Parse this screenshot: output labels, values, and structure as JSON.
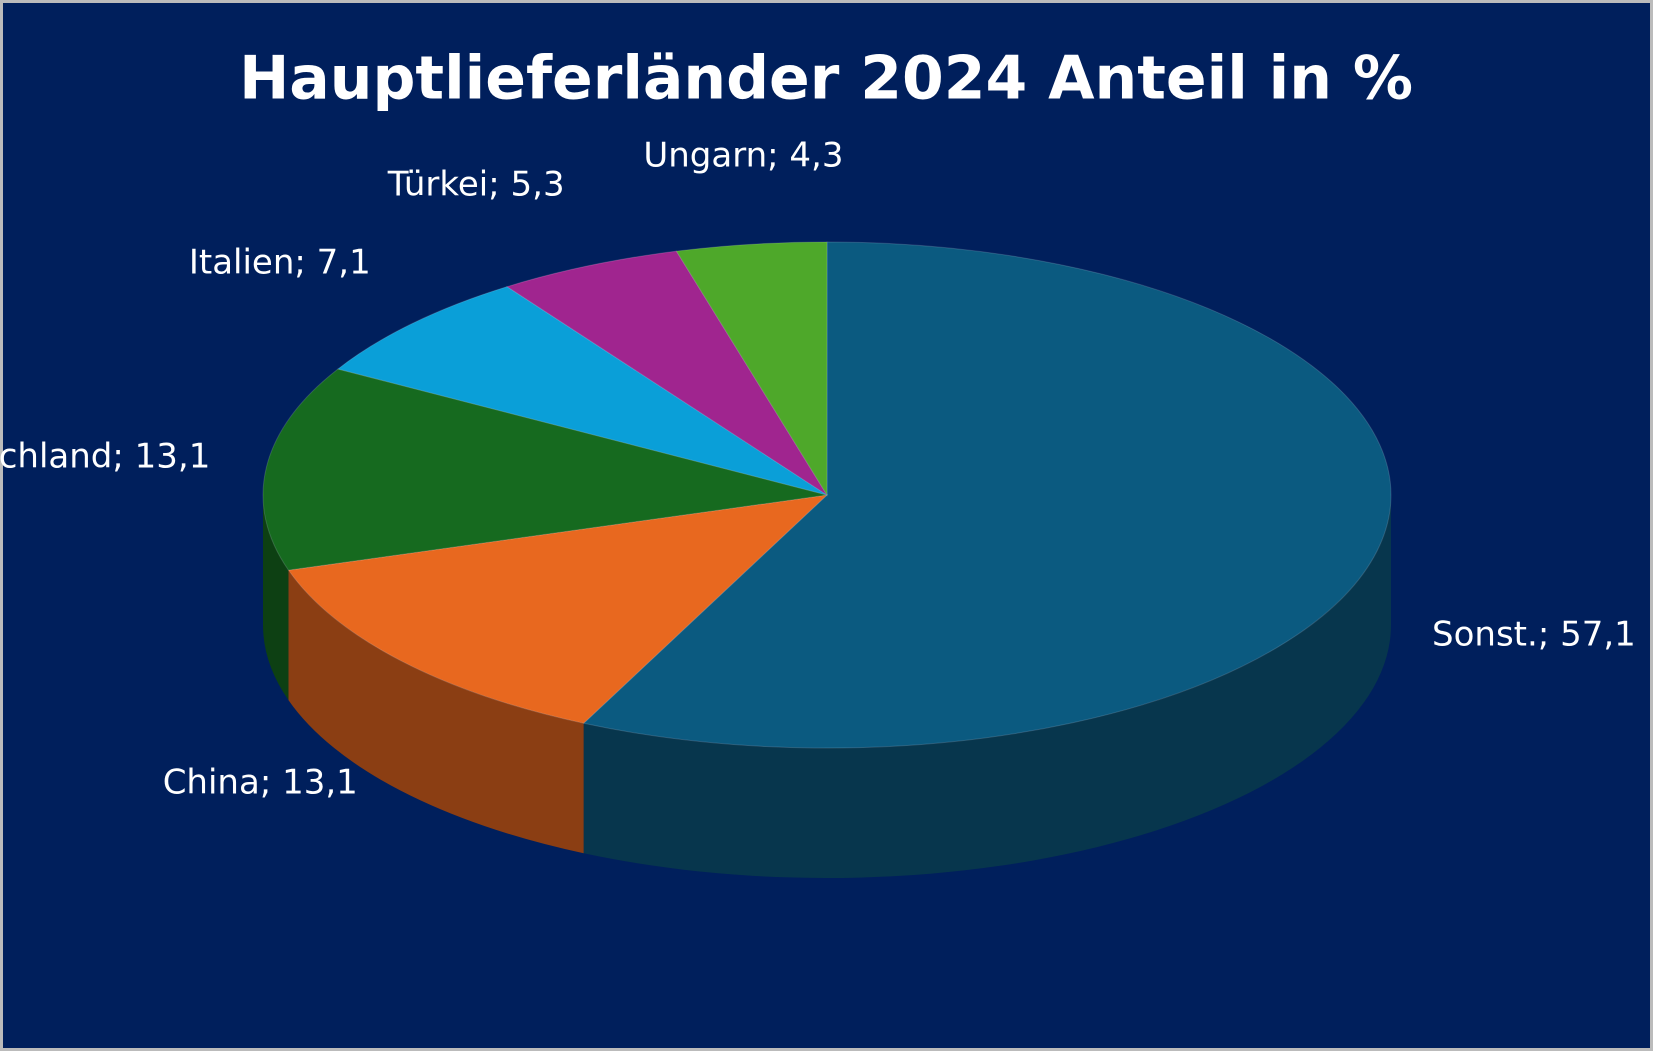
{
  "chart_data": {
    "type": "pie3d",
    "title": "Hauptlieferländer 2024 Anteil in %",
    "categories": [
      "Sonst.",
      "China",
      "Deutschland",
      "Italien",
      "Türkei",
      "Ungarn"
    ],
    "values": [
      57.1,
      13.1,
      13.1,
      7.1,
      5.3,
      4.3
    ],
    "value_labels": [
      "57,1",
      "13,1",
      "13,1",
      "7,1",
      "5,3",
      "4,3"
    ],
    "label_separator": "; ",
    "colors": [
      "#0b5a80",
      "#e8681f",
      "#166a1f",
      "#0a9fd8",
      "#a0258f",
      "#4ea82a"
    ]
  }
}
